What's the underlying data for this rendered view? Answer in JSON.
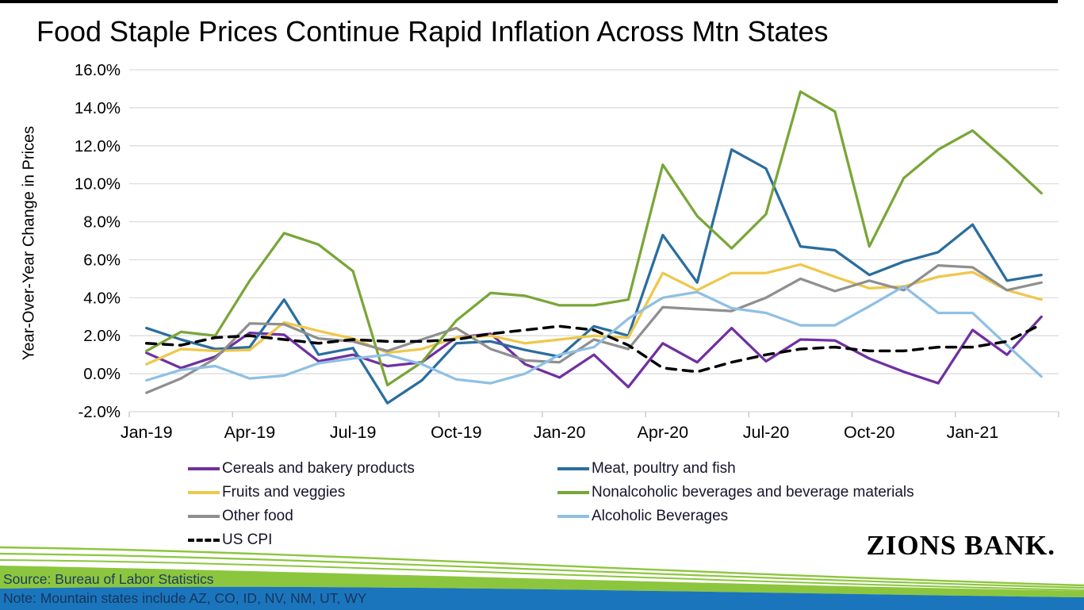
{
  "title": "Food Staple Prices Continue Rapid Inflation Across Mtn States",
  "y_axis_label": "Year-Over-Year Change in Prices",
  "footer": {
    "source": "Source: Bureau of Labor Statistics",
    "note": "Note: Mountain states include AZ, CO, ID, NV, NM, UT, WY"
  },
  "logo": {
    "text": "ZIONS BANK."
  },
  "chart_data": {
    "type": "line",
    "title": "Food Staple Prices Continue Rapid Inflation Across Mtn States",
    "xlabel": "",
    "ylabel": "Year-Over-Year Change in Prices",
    "ylim": [
      -2,
      16
    ],
    "grid": true,
    "legend_position": "bottom-two-columns",
    "y_tick_values": [
      16,
      14,
      12,
      10,
      8,
      6,
      4,
      2,
      0,
      -2
    ],
    "y_tick_labels": [
      "16.0%",
      "14.0%",
      "12.0%",
      "10.0%",
      "8.0%",
      "6.0%",
      "4.0%",
      "2.0%",
      "0.0%",
      "-2.0%"
    ],
    "categories": [
      "Jan-19",
      "Feb-19",
      "Mar-19",
      "Apr-19",
      "May-19",
      "Jun-19",
      "Jul-19",
      "Aug-19",
      "Sep-19",
      "Oct-19",
      "Nov-19",
      "Dec-19",
      "Jan-20",
      "Feb-20",
      "Mar-20",
      "Apr-20",
      "May-20",
      "Jun-20",
      "Jul-20",
      "Aug-20",
      "Sep-20",
      "Oct-20",
      "Nov-20",
      "Dec-20",
      "Jan-21",
      "Feb-21",
      "Mar-21"
    ],
    "x_tick_labels": [
      "Jan-19",
      "Apr-19",
      "Jul-19",
      "Oct-19",
      "Jan-20",
      "Apr-20",
      "Jul-20",
      "Oct-20",
      "Jan-21"
    ],
    "x_tick_indices": [
      0,
      3,
      6,
      9,
      12,
      15,
      18,
      21,
      24
    ],
    "series": [
      {
        "name": "Cereals and bakery products",
        "color": "#7030A0",
        "dashed": false,
        "values": [
          1.1,
          0.3,
          0.9,
          2.15,
          2.05,
          0.65,
          1.0,
          0.4,
          0.6,
          1.9,
          2.1,
          0.5,
          -0.2,
          1.0,
          -0.7,
          1.6,
          0.6,
          2.4,
          0.65,
          1.8,
          1.75,
          0.8,
          0.1,
          -0.5,
          2.3,
          1.0,
          3.0
        ]
      },
      {
        "name": "Meat, poultry and fish",
        "color": "#2A6D9E",
        "dashed": false,
        "values": [
          2.4,
          1.8,
          1.3,
          1.4,
          3.9,
          1.0,
          1.35,
          -1.55,
          -0.35,
          1.6,
          1.7,
          1.25,
          0.9,
          2.5,
          2.0,
          7.3,
          4.8,
          11.8,
          10.8,
          6.7,
          6.5,
          5.2,
          5.9,
          6.4,
          7.85,
          4.9,
          5.2
        ]
      },
      {
        "name": "Fruits and veggies",
        "color": "#EFC74B",
        "dashed": false,
        "values": [
          0.5,
          1.3,
          1.2,
          1.25,
          2.7,
          2.25,
          1.85,
          1.1,
          1.3,
          1.9,
          2.0,
          1.6,
          1.8,
          2.0,
          1.9,
          5.3,
          4.4,
          5.3,
          5.3,
          5.75,
          5.1,
          4.5,
          4.6,
          5.1,
          5.35,
          4.4,
          3.9
        ]
      },
      {
        "name": "Nonalcoholic beverages and beverage materials",
        "color": "#79A637",
        "dashed": false,
        "values": [
          1.2,
          2.2,
          2.0,
          4.9,
          7.4,
          6.8,
          5.4,
          -0.6,
          0.6,
          2.8,
          4.25,
          4.1,
          3.6,
          3.6,
          3.9,
          11.0,
          8.3,
          6.6,
          8.4,
          14.85,
          13.8,
          6.7,
          10.3,
          11.8,
          12.8,
          11.2,
          9.5
        ]
      },
      {
        "name": "Other food",
        "color": "#8F8F8F",
        "dashed": false,
        "values": [
          -1.0,
          -0.25,
          0.8,
          2.65,
          2.6,
          1.85,
          1.7,
          1.2,
          1.8,
          2.4,
          1.3,
          0.7,
          0.6,
          1.8,
          1.3,
          3.5,
          3.4,
          3.3,
          4.0,
          5.0,
          4.35,
          4.9,
          4.4,
          5.7,
          5.6,
          4.4,
          4.8
        ]
      },
      {
        "name": "Alcoholic Beverages",
        "color": "#8FC0E4",
        "dashed": false,
        "values": [
          -0.35,
          0.2,
          0.4,
          -0.25,
          -0.1,
          0.55,
          0.8,
          1.0,
          0.5,
          -0.3,
          -0.5,
          0.0,
          1.0,
          1.4,
          2.9,
          4.0,
          4.3,
          3.45,
          3.2,
          2.55,
          2.55,
          3.55,
          4.6,
          3.2,
          3.2,
          1.5,
          -0.15
        ]
      },
      {
        "name": "US CPI",
        "color": "#000000",
        "dashed": true,
        "values": [
          1.6,
          1.5,
          1.9,
          2.0,
          1.8,
          1.6,
          1.8,
          1.7,
          1.7,
          1.8,
          2.1,
          2.3,
          2.5,
          2.3,
          1.5,
          0.3,
          0.1,
          0.6,
          1.0,
          1.3,
          1.4,
          1.2,
          1.2,
          1.4,
          1.4,
          1.7,
          2.6
        ]
      }
    ],
    "legend_columns": [
      [
        "Cereals and bakery products",
        "Fruits and veggies",
        "Other food",
        "US CPI"
      ],
      [
        "Meat, poultry and fish",
        "Nonalcoholic beverages and beverage materials",
        "Alcoholic Beverages"
      ]
    ]
  }
}
